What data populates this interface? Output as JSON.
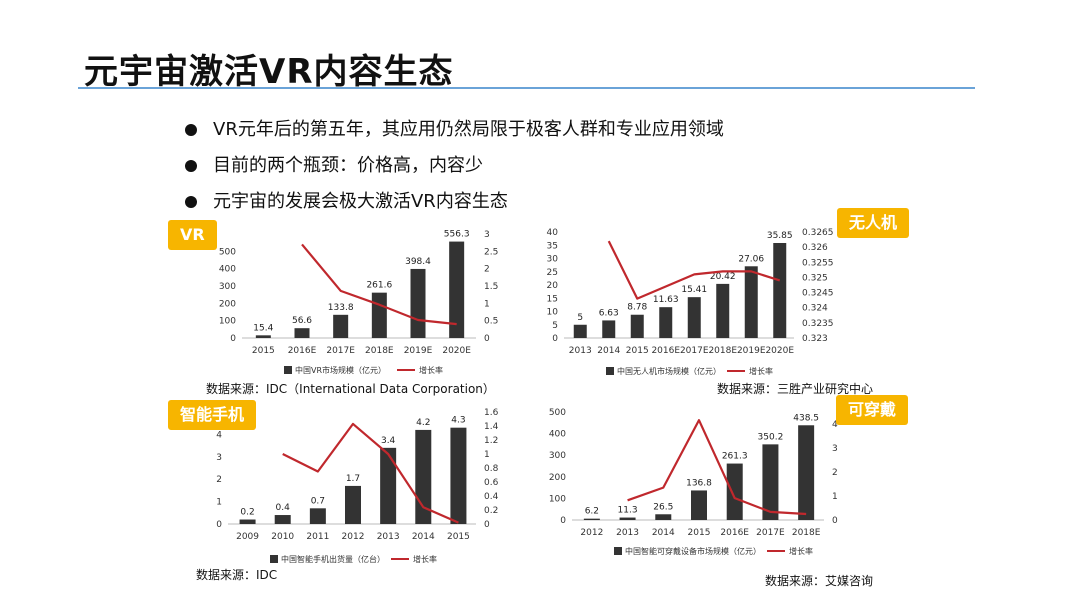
{
  "slide": {
    "title": "元宇宙激活VR内容生态",
    "bullets": [
      "VR元年后的第五年，其应用仍然局限于极客人群和专业应用领域",
      "目前的两个瓶颈：价格高，内容少",
      "元宇宙的发展会极大激活VR内容生态"
    ]
  },
  "tags": {
    "vr": "VR",
    "drone": "无人机",
    "phone": "智能手机",
    "wear": "可穿戴"
  },
  "sources": {
    "vr": "数据来源：IDC（International Data Corporation）",
    "drone": "数据来源：三胜产业研究中心",
    "phone": "数据来源：IDC",
    "wear": "数据来源：艾媒咨询"
  },
  "colors": {
    "bar": "#333333",
    "line": "#c0282d",
    "tag_bg": "#f7b500",
    "title_rule": "#6aa3d8"
  },
  "chart_data": [
    {
      "id": "vr",
      "type": "bar",
      "categories": [
        "2015",
        "2016E",
        "2017E",
        "2018E",
        "2019E",
        "2020E"
      ],
      "series": [
        {
          "name": "中国VR市场规模（亿元）",
          "type": "bar",
          "axis": "left",
          "values": [
            15.4,
            56.6,
            133.8,
            261.6,
            398.4,
            556.3
          ],
          "labels": [
            "15.4",
            "56.6",
            "133.8",
            "261.6",
            "398.4",
            "556.3"
          ]
        },
        {
          "name": "增长率",
          "type": "line",
          "axis": "right",
          "values": [
            null,
            2.7,
            1.36,
            0.96,
            0.52,
            0.4
          ]
        }
      ],
      "y_left": {
        "min": 0,
        "max": 600,
        "ticks": [
          "0",
          "100",
          "200",
          "300",
          "400",
          "500"
        ]
      },
      "y_right": {
        "min": 0,
        "max": 3,
        "ticks": [
          "0",
          "0.5",
          "1",
          "1.5",
          "2",
          "2.5",
          "3"
        ]
      }
    },
    {
      "id": "drone",
      "type": "bar",
      "categories": [
        "2013",
        "2014",
        "2015",
        "2016E",
        "2017E",
        "2018E",
        "2019E",
        "2020E"
      ],
      "series": [
        {
          "name": "中国无人机市场规模（亿元）",
          "type": "bar",
          "axis": "left",
          "values": [
            5,
            6.63,
            8.78,
            11.63,
            15.41,
            20.42,
            27.06,
            35.85
          ],
          "labels": [
            "5",
            "6.63",
            "8.78",
            "11.63",
            "15.41",
            "20.42",
            "27.06",
            "35.85"
          ]
        },
        {
          "name": "增长率",
          "type": "line",
          "axis": "right",
          "values": [
            null,
            0.3262,
            0.3243,
            0.3247,
            0.3251,
            0.3252,
            0.3252,
            0.3249
          ]
        }
      ],
      "y_left": {
        "min": 0,
        "max": 40,
        "ticks": [
          "0",
          "5",
          "10",
          "15",
          "20",
          "25",
          "30",
          "35",
          "40"
        ]
      },
      "y_right": {
        "min": 0.323,
        "max": 0.3265,
        "ticks": [
          "0.323",
          "0.3235",
          "0.324",
          "0.3245",
          "0.325",
          "0.3255",
          "0.326",
          "0.3265"
        ]
      }
    },
    {
      "id": "phone",
      "type": "bar",
      "categories": [
        "2009",
        "2010",
        "2011",
        "2012",
        "2013",
        "2014",
        "2015"
      ],
      "series": [
        {
          "name": "中国智能手机出货量（亿台）",
          "type": "bar",
          "axis": "left",
          "values": [
            0.2,
            0.4,
            0.7,
            1.7,
            3.4,
            4.2,
            4.3
          ],
          "labels": [
            "0.2",
            "0.4",
            "0.7",
            "1.7",
            "3.4",
            "4.2",
            "4.3"
          ]
        },
        {
          "name": "增长率",
          "type": "line",
          "axis": "right",
          "values": [
            null,
            1.0,
            0.75,
            1.43,
            1.0,
            0.24,
            0.02
          ]
        }
      ],
      "y_left": {
        "min": 0,
        "max": 5,
        "ticks": [
          "0",
          "1",
          "2",
          "3",
          "4"
        ]
      },
      "y_right": {
        "min": 0,
        "max": 1.6,
        "ticks": [
          "0",
          "0.2",
          "0.4",
          "0.6",
          "0.8",
          "1",
          "1.2",
          "1.4",
          "1.6"
        ]
      }
    },
    {
      "id": "wear",
      "type": "bar",
      "categories": [
        "2012",
        "2013",
        "2014",
        "2015",
        "2016E",
        "2017E",
        "2018E"
      ],
      "series": [
        {
          "name": "中国智能可穿戴设备市场规模（亿元）",
          "type": "bar",
          "axis": "left",
          "values": [
            6.2,
            11.3,
            26.5,
            136.8,
            261.3,
            350.2,
            438.5
          ],
          "labels": [
            "6.2",
            "11.3",
            "26.5",
            "136.8",
            "261.3",
            "350.2",
            "438.5"
          ]
        },
        {
          "name": "增长率",
          "type": "line",
          "axis": "right",
          "values": [
            null,
            0.82,
            1.35,
            4.16,
            0.91,
            0.34,
            0.25
          ]
        }
      ],
      "y_left": {
        "min": 0,
        "max": 500,
        "ticks": [
          "0",
          "100",
          "200",
          "300",
          "400",
          "500"
        ]
      },
      "y_right": {
        "min": 0,
        "max": 4.5,
        "ticks": [
          "0",
          "1",
          "2",
          "3",
          "4"
        ]
      }
    }
  ]
}
